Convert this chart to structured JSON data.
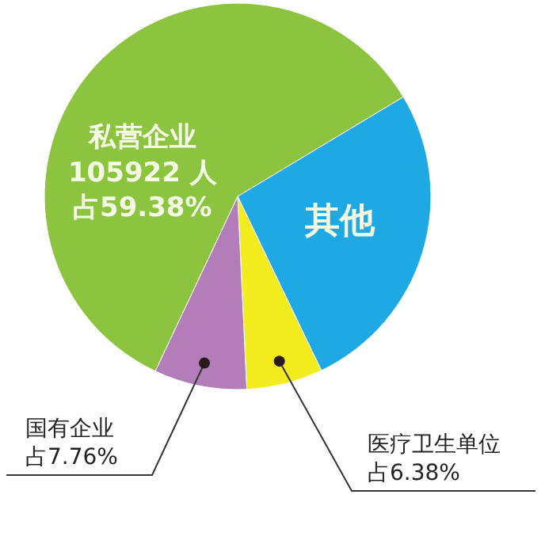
{
  "chart_data": {
    "type": "pie",
    "categories": [
      "其他",
      "医疗卫生单位",
      "国有企业",
      "私营企业"
    ],
    "values": [
      26.48,
      6.38,
      7.76,
      59.38
    ],
    "colors": [
      "#1ea9e4",
      "#f3ec1f",
      "#b27db8",
      "#8cc43f"
    ],
    "value_labels": [
      null,
      "占6.38%",
      "占7.76%",
      "占59.38%"
    ],
    "annotations": [
      "105922 人"
    ]
  }
}
